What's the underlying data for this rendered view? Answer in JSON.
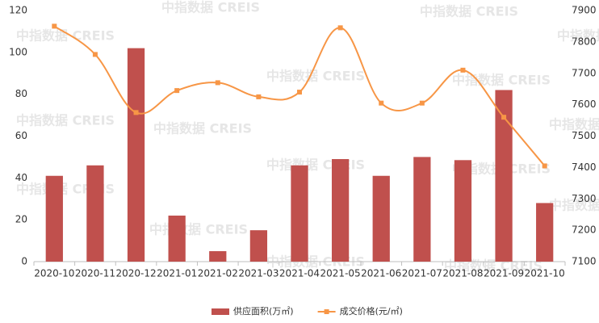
{
  "chart_data": {
    "type": "combo",
    "categories": [
      "2020-10",
      "2020-11",
      "2020-12",
      "2021-01",
      "2021-02",
      "2021-03",
      "2021-04",
      "2021-05",
      "2021-06",
      "2021-07",
      "2021-08",
      "2021-09",
      "2021-10"
    ],
    "series": [
      {
        "name": "供应面积(万㎡)",
        "type": "bar",
        "color": "#c0504d",
        "values": [
          41,
          46,
          102,
          22,
          5,
          15,
          46,
          49,
          41,
          50,
          48.5,
          82,
          28
        ]
      },
      {
        "name": "成交价格(元/㎡)",
        "type": "line",
        "axis": "y2",
        "color": "#f79646",
        "values": [
          7850,
          7760,
          7575,
          7645,
          7670,
          7625,
          7640,
          7845,
          7605,
          7605,
          7710,
          7560,
          7405
        ]
      }
    ],
    "ylim": [
      0,
      120
    ],
    "yticks": [
      0,
      20,
      40,
      60,
      80,
      100,
      120
    ],
    "y2lim": [
      7100,
      7900
    ],
    "y2ticks": [
      7100,
      7200,
      7300,
      7400,
      7500,
      7600,
      7700,
      7800,
      7900
    ],
    "grid": false,
    "legend": "bottom",
    "watermark": "中指数据 CREIS"
  }
}
